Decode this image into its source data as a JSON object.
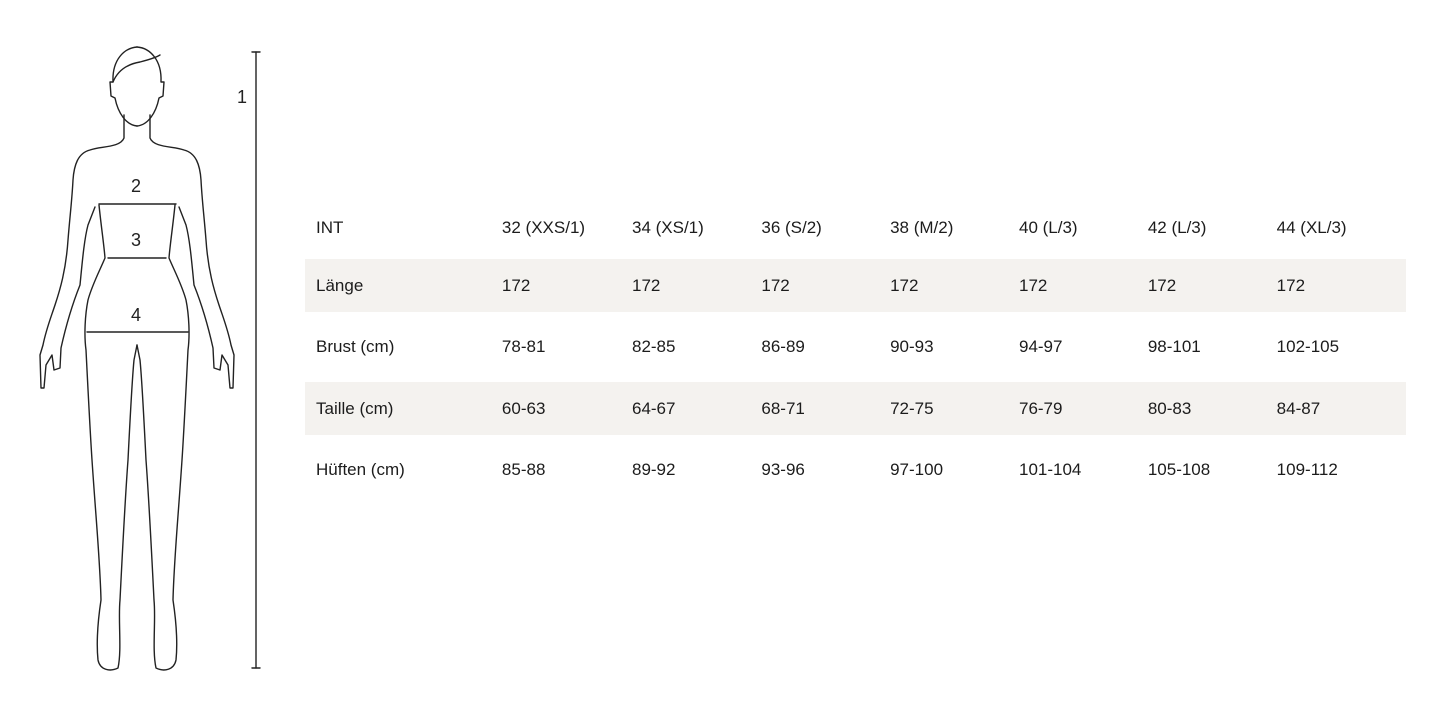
{
  "figure": {
    "labels": {
      "height": "1",
      "bust": "2",
      "waist": "3",
      "hips": "4"
    },
    "line_color": "#222222"
  },
  "table": {
    "row_shade_color": "#f4f2ef",
    "header": [
      "INT",
      "32 (XXS/1)",
      "34 (XS/1)",
      "36 (S/2)",
      "38 (M/2)",
      "40 (L/3)",
      "42 (L/3)",
      "44 (XL/3)"
    ],
    "rows": [
      [
        "Länge",
        "172",
        "172",
        "172",
        "172",
        "172",
        "172",
        "172"
      ],
      [
        "Brust (cm)",
        "78-81",
        "82-85",
        "86-89",
        "90-93",
        "94-97",
        "98-101",
        "102-105"
      ],
      [
        "Taille (cm)",
        "60-63",
        "64-67",
        "68-71",
        "72-75",
        "76-79",
        "80-83",
        "84-87"
      ],
      [
        "Hüften (cm)",
        "85-88",
        "89-92",
        "93-96",
        "97-100",
        "101-104",
        "105-108",
        "109-112"
      ]
    ]
  }
}
